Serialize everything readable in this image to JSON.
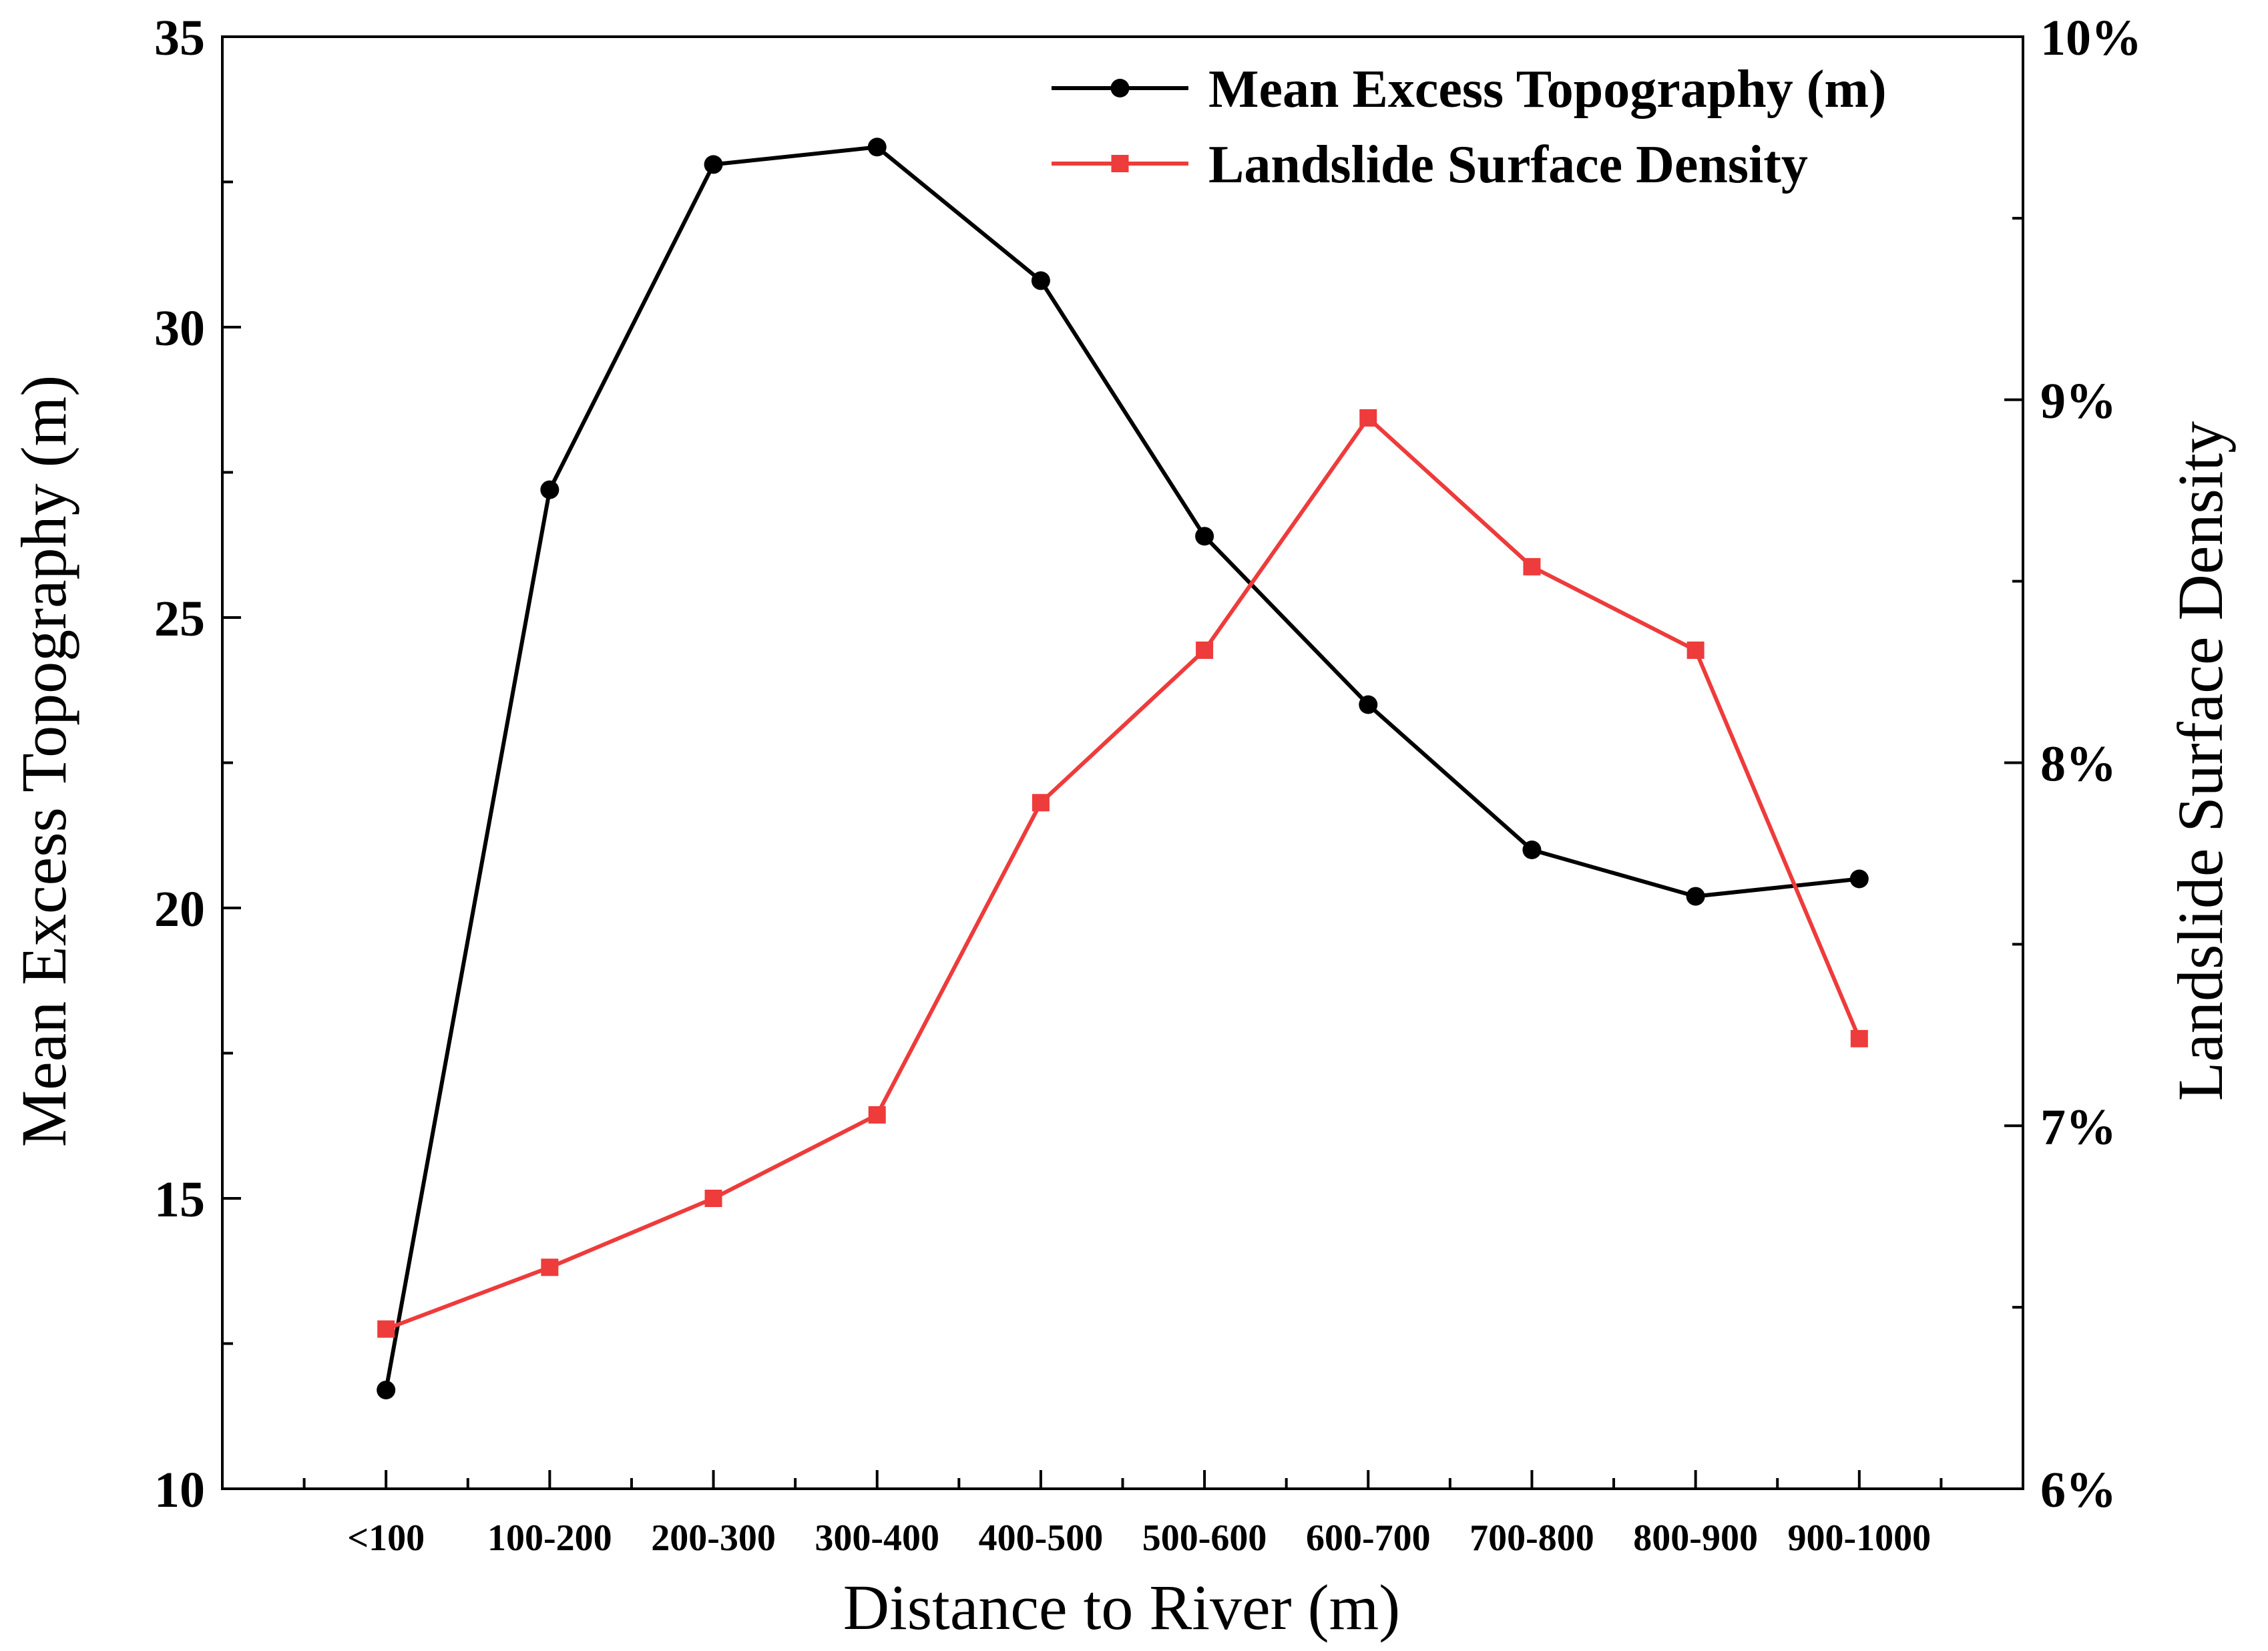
{
  "chart_data": {
    "type": "line",
    "xlabel": "Distance to River (m)",
    "ylabel": "Mean Excess Topography (m)",
    "y2label": "Landslide Surface Density",
    "categories": [
      "<100",
      "100-200",
      "200-300",
      "300-400",
      "400-500",
      "500-600",
      "600-700",
      "700-800",
      "800-900",
      "900-1000"
    ],
    "ylim": [
      10,
      35
    ],
    "y_ticks": [
      10,
      15,
      20,
      25,
      30,
      35
    ],
    "y_tick_labels": [
      "10",
      "15",
      "20",
      "25",
      "30",
      "35"
    ],
    "y2lim": [
      6,
      10
    ],
    "y2_ticks": [
      6,
      7,
      8,
      9,
      10
    ],
    "y2_tick_labels": [
      "6%",
      "7%",
      "8%",
      "9%",
      "10%"
    ],
    "grid": false,
    "legend_position": "top-right",
    "series": [
      {
        "name": "Mean Excess Topography (m)",
        "axis": "left",
        "color": "#000000",
        "marker": "circle",
        "values": [
          11.7,
          27.2,
          32.8,
          33.1,
          30.8,
          26.4,
          23.5,
          21.0,
          20.2,
          20.5
        ]
      },
      {
        "name": "Landslide Surface Density",
        "axis": "right",
        "color": "#ee3b3b",
        "marker": "square",
        "values": [
          6.44,
          6.61,
          6.8,
          7.03,
          7.89,
          8.31,
          8.95,
          8.54,
          8.31,
          7.24
        ]
      }
    ]
  }
}
